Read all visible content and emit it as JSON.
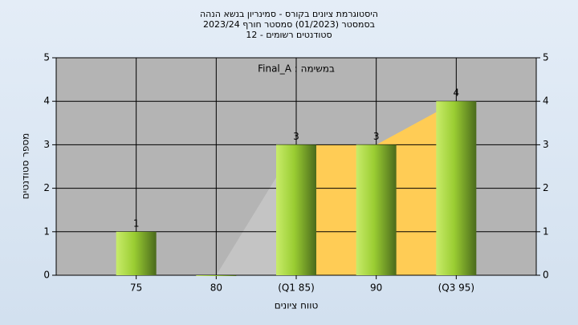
{
  "chart_data": {
    "type": "bar",
    "title": [
      "היסטוגרמת ציונים בקורס - סמינריון בנשא הנהה",
      "בסמסטר  (01/2023)  סמסטר חורף 2023/24",
      "סטודנטים רשומים - 12"
    ],
    "annotation": "Final_A : במשימה",
    "x_label": "טווח ציונים",
    "y_label": "מספר סטודנטים",
    "categories": [
      "75",
      "80",
      "(Q1 85)",
      "90",
      "(Q3 95)"
    ],
    "values": [
      1,
      0,
      3,
      3,
      4
    ],
    "value_labels": [
      "1",
      null,
      "3",
      "3",
      "4"
    ],
    "color": "#9acd32",
    "area_color": "#c4c4c4",
    "quartile_color": "#ffcc55",
    "ylim": [
      0,
      5
    ],
    "yticks": [
      0,
      1,
      2,
      3,
      4,
      5
    ],
    "grid": true
  }
}
